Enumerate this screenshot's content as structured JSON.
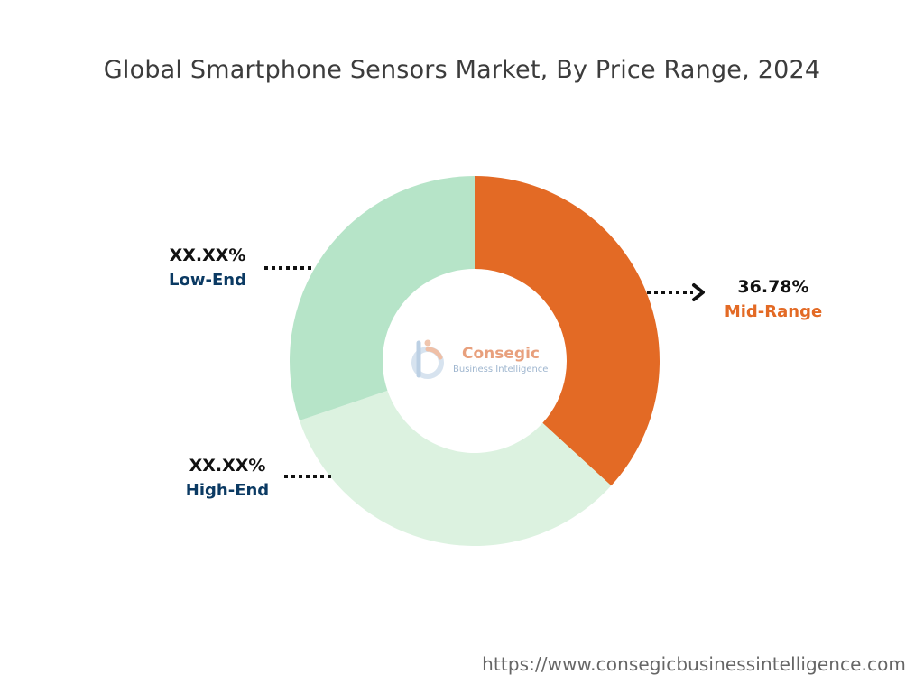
{
  "chart_data": {
    "type": "pie",
    "subtype": "donut",
    "title": "Global Smartphone Sensors Market, By Price Range, 2024",
    "series": [
      {
        "name": "Mid-Range",
        "value": 36.78,
        "label": "36.78%",
        "color": "#e36a25",
        "label_color": "#e36a25"
      },
      {
        "name": "High-End",
        "value": 33.0,
        "label": "XX.XX%",
        "color": "#dcf2e0",
        "label_color": "#0b3a63"
      },
      {
        "name": "Low-End",
        "value": 30.22,
        "label": "XX.XX%",
        "color": "#b6e4c8",
        "label_color": "#0b3a63"
      }
    ],
    "start_angle_deg": 0,
    "direction": "clockwise"
  },
  "logo": {
    "name": "Consegic",
    "tagline": "Business Intelligence"
  },
  "source_url": "https://www.consegicbusinessintelligence.com"
}
